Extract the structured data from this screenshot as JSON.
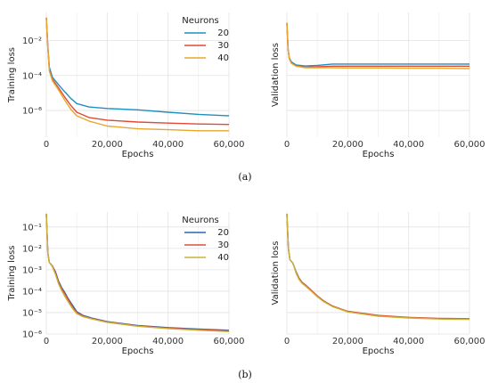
{
  "figure": {
    "panel_labels": [
      "(a)",
      "(b)"
    ]
  },
  "chart_data": [
    {
      "id": "a-train",
      "type": "line",
      "xlabel": "Epochs",
      "ylabel": "Training loss",
      "y_scale": "log",
      "xlim": [
        0,
        60000
      ],
      "ylim": [
        3e-08,
        0.4
      ],
      "xticks": [
        0,
        20000,
        40000,
        60000
      ],
      "xtick_labels": [
        "0",
        "20,000",
        "40,000",
        "60,000"
      ],
      "yticks": [
        1e-06,
        0.0001,
        0.01
      ],
      "ytick_labels": [
        "10⁻⁶",
        "10⁻⁴",
        "10⁻²"
      ],
      "grid": true,
      "legend": {
        "title": "Neurons",
        "position": "top-right"
      },
      "series": [
        {
          "name": "20",
          "color": "#1f8fc0",
          "x": [
            0,
            500,
            1000,
            2000,
            4000,
            6000,
            8000,
            10000,
            14000,
            20000,
            30000,
            40000,
            50000,
            60000
          ],
          "y": [
            0.2,
            0.005,
            0.0003,
            8e-05,
            3e-05,
            1.2e-05,
            5e-06,
            2.5e-06,
            1.6e-06,
            1.3e-06,
            1.1e-06,
            8e-07,
            6e-07,
            5e-07
          ]
        },
        {
          "name": "30",
          "color": "#e24a33",
          "x": [
            0,
            500,
            1000,
            2000,
            4000,
            6000,
            8000,
            10000,
            14000,
            20000,
            30000,
            40000,
            50000,
            60000
          ],
          "y": [
            0.2,
            0.004,
            0.0002,
            6e-05,
            2e-05,
            6e-06,
            2e-06,
            8e-07,
            4e-07,
            2.8e-07,
            2.2e-07,
            1.9e-07,
            1.7e-07,
            1.6e-07
          ]
        },
        {
          "name": "40",
          "color": "#e8a72d",
          "x": [
            0,
            500,
            1000,
            2000,
            4000,
            6000,
            8000,
            10000,
            14000,
            20000,
            30000,
            40000,
            50000,
            60000
          ],
          "y": [
            0.2,
            0.004,
            0.00018,
            5e-05,
            1.5e-05,
            4e-06,
            1.2e-06,
            5e-07,
            2.5e-07,
            1.3e-07,
            9e-08,
            8e-08,
            7e-08,
            7e-08
          ]
        }
      ]
    },
    {
      "id": "a-val",
      "type": "line",
      "xlabel": "Epochs",
      "ylabel": "Validation loss",
      "y_scale": "log",
      "xlim": [
        0,
        60000
      ],
      "ylim": [
        3e-08,
        0.4
      ],
      "xticks": [
        0,
        20000,
        40000,
        60000
      ],
      "xtick_labels": [
        "0",
        "20,000",
        "40,000",
        "60,000"
      ],
      "yticks": [
        1e-06,
        0.0001,
        0.01
      ],
      "ytick_labels": [],
      "grid": true,
      "series": [
        {
          "name": "20",
          "color": "#1f8fc0",
          "x": [
            0,
            400,
            800,
            1500,
            3000,
            6000,
            10000,
            15000,
            20000,
            30000,
            40000,
            50000,
            60000
          ],
          "y": [
            0.1,
            0.003,
            0.001,
            0.0006,
            0.0004,
            0.00035,
            0.00038,
            0.00045,
            0.00045,
            0.00045,
            0.00045,
            0.00045,
            0.00045
          ]
        },
        {
          "name": "30",
          "color": "#e24a33",
          "x": [
            0,
            400,
            800,
            1500,
            3000,
            6000,
            10000,
            15000,
            20000,
            30000,
            40000,
            50000,
            60000
          ],
          "y": [
            0.1,
            0.003,
            0.0009,
            0.0005,
            0.00035,
            0.0003,
            0.00032,
            0.00034,
            0.00034,
            0.00034,
            0.00034,
            0.00034,
            0.00034
          ]
        },
        {
          "name": "40",
          "color": "#e8a72d",
          "x": [
            0,
            400,
            800,
            1500,
            3000,
            6000,
            10000,
            15000,
            20000,
            30000,
            40000,
            50000,
            60000
          ],
          "y": [
            0.1,
            0.003,
            0.0009,
            0.0005,
            0.00034,
            0.00028,
            0.00028,
            0.00028,
            0.00027,
            0.00027,
            0.00026,
            0.00026,
            0.00025
          ]
        }
      ]
    },
    {
      "id": "b-train",
      "type": "line",
      "xlabel": "Epochs",
      "ylabel": "Training loss",
      "y_scale": "log",
      "xlim": [
        0,
        60000
      ],
      "ylim": [
        1e-06,
        0.5
      ],
      "xticks": [
        0,
        20000,
        40000,
        60000
      ],
      "xtick_labels": [
        "0",
        "20,000",
        "40,000",
        "60,000"
      ],
      "yticks": [
        1e-06,
        1e-05,
        0.0001,
        0.001,
        0.01,
        0.1
      ],
      "ytick_labels": [
        "10⁻⁶",
        "10⁻⁵",
        "10⁻⁴",
        "10⁻³",
        "10⁻²",
        "10⁻¹"
      ],
      "grid": true,
      "legend": {
        "title": "Neurons",
        "position": "top-right"
      },
      "series": [
        {
          "name": "20",
          "color": "#2a66b0",
          "x": [
            0,
            500,
            1000,
            2000,
            3000,
            4000,
            5000,
            6000,
            7000,
            8000,
            9000,
            10000,
            12000,
            15000,
            20000,
            30000,
            40000,
            50000,
            60000
          ],
          "y": [
            0.4,
            0.006,
            0.0022,
            0.0015,
            0.0008,
            0.0003,
            0.00015,
            9e-05,
            5e-05,
            3e-05,
            1.8e-05,
            1.1e-05,
            7.5e-06,
            5.5e-06,
            3.8e-06,
            2.5e-06,
            2e-06,
            1.7e-06,
            1.5e-06
          ]
        },
        {
          "name": "30",
          "color": "#d9503a",
          "x": [
            0,
            500,
            1000,
            2000,
            3000,
            4000,
            5000,
            6000,
            7000,
            8000,
            9000,
            10000,
            12000,
            15000,
            20000,
            30000,
            40000,
            50000,
            60000
          ],
          "y": [
            0.4,
            0.006,
            0.0022,
            0.0015,
            0.0007,
            0.00026,
            0.00013,
            8e-05,
            4.5e-05,
            2.6e-05,
            1.5e-05,
            1e-05,
            7e-06,
            5.2e-06,
            3.6e-06,
            2.4e-06,
            1.9e-06,
            1.6e-06,
            1.4e-06
          ]
        },
        {
          "name": "40",
          "color": "#c9b23a",
          "x": [
            0,
            500,
            1000,
            2000,
            3000,
            4000,
            5000,
            6000,
            7000,
            8000,
            9000,
            10000,
            12000,
            15000,
            20000,
            30000,
            40000,
            50000,
            60000
          ],
          "y": [
            0.4,
            0.006,
            0.0022,
            0.0014,
            0.0006,
            0.00022,
            0.00011,
            6e-05,
            3.5e-05,
            2.1e-05,
            1.3e-05,
            9e-06,
            6.5e-06,
            5e-06,
            3.5e-06,
            2.3e-06,
            1.8e-06,
            1.5e-06,
            1.3e-06
          ]
        }
      ]
    },
    {
      "id": "b-val",
      "type": "line",
      "xlabel": "Epochs",
      "ylabel": "Validation loss",
      "y_scale": "log",
      "xlim": [
        0,
        60000
      ],
      "ylim": [
        1e-06,
        0.5
      ],
      "xticks": [
        0,
        20000,
        40000,
        60000
      ],
      "xtick_labels": [
        "0",
        "20,000",
        "40,000",
        "60,000"
      ],
      "yticks": [
        1e-06,
        1e-05,
        0.0001,
        0.001,
        0.01,
        0.1
      ],
      "ytick_labels": [],
      "grid": true,
      "series": [
        {
          "name": "20",
          "color": "#2a66b0",
          "x": [
            0,
            500,
            1000,
            2000,
            3000,
            4000,
            5000,
            6000,
            8000,
            10000,
            12000,
            15000,
            20000,
            30000,
            40000,
            50000,
            60000
          ],
          "y": [
            0.4,
            0.01,
            0.003,
            0.002,
            0.0008,
            0.0004,
            0.00025,
            0.0002,
            0.00011,
            6e-05,
            3.5e-05,
            2e-05,
            1.1e-05,
            7e-06,
            5.8e-06,
            5.2e-06,
            5e-06
          ]
        },
        {
          "name": "30",
          "color": "#d9503a",
          "x": [
            0,
            500,
            1000,
            2000,
            3000,
            4000,
            5000,
            6000,
            8000,
            10000,
            12000,
            15000,
            20000,
            30000,
            40000,
            50000,
            60000
          ],
          "y": [
            0.4,
            0.01,
            0.003,
            0.002,
            0.0008,
            0.0004,
            0.00026,
            0.0002,
            0.00011,
            6e-05,
            3.6e-05,
            2e-05,
            1.15e-05,
            7.4e-06,
            6e-06,
            5.4e-06,
            5.2e-06
          ]
        },
        {
          "name": "40",
          "color": "#c9b23a",
          "x": [
            0,
            500,
            1000,
            2000,
            3000,
            4000,
            5000,
            6000,
            8000,
            10000,
            12000,
            15000,
            20000,
            30000,
            40000,
            50000,
            60000
          ],
          "y": [
            0.4,
            0.01,
            0.003,
            0.002,
            0.0007,
            0.00035,
            0.00023,
            0.00018,
            0.0001,
            5.5e-05,
            3.3e-05,
            1.9e-05,
            1.08e-05,
            6.8e-06,
            5.6e-06,
            5e-06,
            4.8e-06
          ]
        }
      ]
    }
  ]
}
